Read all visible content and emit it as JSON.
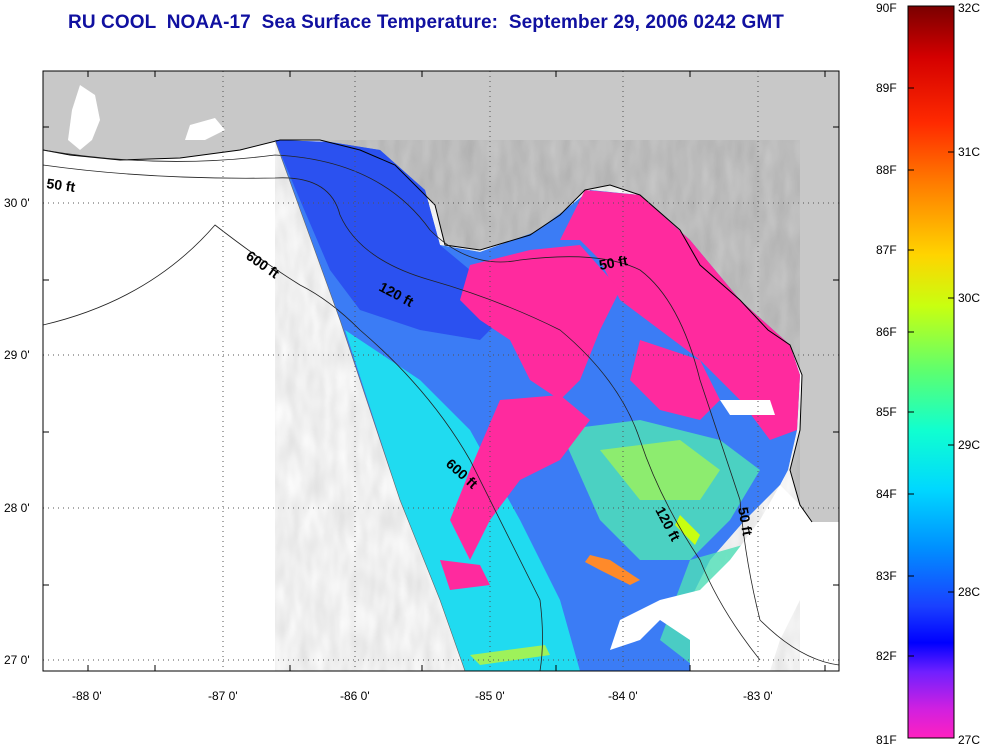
{
  "title": "RU COOL  NOAA-17  Sea Surface Temperature:  September 29, 2006 0242 GMT",
  "axes": {
    "x_ticks": [
      "-88 0'",
      "-87 0'",
      "-86 0'",
      "-85 0'",
      "-84 0'",
      "-83 0'"
    ],
    "y_ticks": [
      "30 0'",
      "29 0'",
      "28 0'",
      "27 0'"
    ]
  },
  "contours": {
    "label_50_west": "50 ft",
    "label_600_west": "600 ft",
    "label_120_north": "120 ft",
    "label_50_north": "50 ft",
    "label_600_south": "600 ft",
    "label_120_south": "120 ft",
    "label_50_south": "50 ft"
  },
  "colorbar": {
    "fahrenheit": [
      "90F",
      "89F",
      "88F",
      "87F",
      "86F",
      "85F",
      "84F",
      "83F",
      "82F",
      "81F"
    ],
    "celsius": [
      "32C",
      "31C",
      "30C",
      "29C",
      "28C",
      "27C"
    ],
    "colors": [
      "#7a0000",
      "#d40000",
      "#ff2a00",
      "#ff7a00",
      "#ffd400",
      "#c8ff10",
      "#5cff70",
      "#10ffd0",
      "#00d8ff",
      "#0090ff",
      "#1a40ff",
      "#0000ff",
      "#7020ff",
      "#d020e0",
      "#ff20c0"
    ]
  },
  "land_color": "#c8c8c8",
  "sst_colors": {
    "cool_pink": "#ff2a9e",
    "cool_blue": "#2a4cf0",
    "mid_blue": "#3a7cf5",
    "cyan": "#1ee6f0",
    "teal": "#4fe0b8",
    "green": "#9ef25a",
    "warm_orange": "#ff8a2a"
  }
}
